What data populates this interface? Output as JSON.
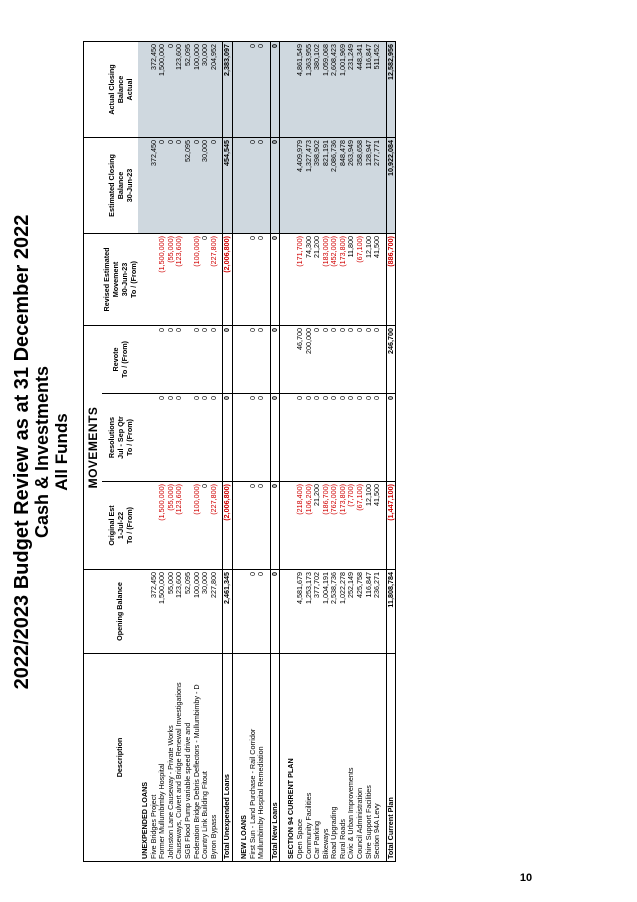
{
  "page_number": "10",
  "title": {
    "line1": "2022/2023 Budget Review as at 31 December 2022",
    "line2": "Cash & Investments",
    "line3": "All Funds"
  },
  "headers": {
    "movements": "MOVEMENTS",
    "description": "Description",
    "opening_balance": "Opening Balance",
    "original_est": [
      "Original Est",
      "1-Jul-22",
      "To / (From)"
    ],
    "resolutions": [
      "Resolutions",
      "Jul - Sep Qtr",
      "To / (From)"
    ],
    "revote": [
      "Revote",
      "To / (From)"
    ],
    "revised_estimated": [
      "Revised Estimated",
      "Movement",
      "30-Jun-23",
      "To / (From)"
    ],
    "estimated_closing": [
      "Estimated Closing",
      "Balance",
      "30-Jun-23"
    ],
    "actual_closing": [
      "Actual Closing",
      "Balance",
      "Actual"
    ]
  },
  "sections": [
    {
      "heading": "UNEXPENDED LOANS",
      "rows": [
        {
          "desc": "Five Bridges Project",
          "open": "372,450",
          "orig": "",
          "res": "",
          "rev": "",
          "revised": "",
          "est": "372,450",
          "act": "372,450"
        },
        {
          "desc": "Former Mullumbimby Hospital",
          "open": "1,500,000",
          "orig": "(1,500,000)",
          "res": "0",
          "rev": "0",
          "revised": "(1,500,000)",
          "est": "0",
          "act": "1,500,000"
        },
        {
          "desc": "Johnston Lane Causeway - Private Works",
          "open": "55,000",
          "orig": "(55,000)",
          "res": "0",
          "rev": "0",
          "revised": "(55,000)",
          "est": "0",
          "act": "0"
        },
        {
          "desc": "Causeways, Culvert and Bridge Renewal Investigations",
          "open": "123,600",
          "orig": "(123,600)",
          "res": "0",
          "rev": "0",
          "revised": "(123,600)",
          "est": "0",
          "act": "123,600"
        },
        {
          "desc": "SGB Flood Pump variable speed drive and",
          "open": "52,095",
          "orig": "",
          "res": "",
          "rev": "",
          "revised": "",
          "est": "52,095",
          "act": "52,095"
        },
        {
          "desc": "Federation Bridge Debris Deflectors - Mullumbimby - D",
          "open": "100,000",
          "orig": "(100,000)",
          "res": "0",
          "rev": "0",
          "revised": "(100,000)",
          "est": "0",
          "act": "100,000"
        },
        {
          "desc": "Country Link Building Fitout",
          "open": "30,000",
          "orig": "0",
          "res": "0",
          "rev": "0",
          "revised": "0",
          "est": "30,000",
          "act": "30,000"
        },
        {
          "desc": "Byron Bypass",
          "open": "227,800",
          "orig": "(227,800)",
          "res": "0",
          "rev": "0",
          "revised": "(227,800)",
          "est": "0",
          "act": "204,952"
        }
      ],
      "total": {
        "desc": "Total Unexpended Loans",
        "open": "2,461,345",
        "orig": "(2,006,800)",
        "res": "0",
        "rev": "0",
        "revised": "(2,006,800)",
        "est": "454,545",
        "act": "2,383,097"
      }
    },
    {
      "heading": "NEW LOANS",
      "rows": [
        {
          "desc": "First Sun - Land Purchase - Rail Corridor",
          "open": "0",
          "orig": "0",
          "res": "0",
          "rev": "0",
          "revised": "0",
          "est": "0",
          "act": "0"
        },
        {
          "desc": "Mullumbimby Hospital Remediation",
          "open": "0",
          "orig": "0",
          "res": "0",
          "rev": "0",
          "revised": "0",
          "est": "0",
          "act": "0"
        }
      ],
      "total": {
        "desc": "Total New Loans",
        "open": "0",
        "orig": "0",
        "res": "0",
        "rev": "0",
        "revised": "0",
        "est": "0",
        "act": "0"
      }
    },
    {
      "heading": "SECTION 94 CURRENT PLAN",
      "rows": [
        {
          "desc": "Open Space",
          "open": "4,581,679",
          "orig": "(218,400)",
          "res": "0",
          "rev": "46,700",
          "revised": "(171,700)",
          "est": "4,409,979",
          "act": "4,861,549"
        },
        {
          "desc": "Community Facilities",
          "open": "1,253,173",
          "orig": "(106,200)",
          "res": "0",
          "rev": "200,000",
          "revised": "74,300",
          "est": "1,327,473",
          "act": "1,363,955"
        },
        {
          "desc": "Car Parking",
          "open": "377,702",
          "orig": "21,200",
          "res": "0",
          "rev": "0",
          "revised": "21,200",
          "est": "398,902",
          "act": "380,102"
        },
        {
          "desc": "Bikeways",
          "open": "1,004,191",
          "orig": "(186,700)",
          "res": "0",
          "rev": "0",
          "revised": "(183,000)",
          "est": "821,191",
          "act": "1,059,068"
        },
        {
          "desc": "Road Upgrading",
          "open": "2,538,736",
          "orig": "(762,000)",
          "res": "0",
          "rev": "0",
          "revised": "(452,000)",
          "est": "2,086,736",
          "act": "2,608,423"
        },
        {
          "desc": "Rural Roads",
          "open": "1,022,278",
          "orig": "(173,800)",
          "res": "0",
          "rev": "0",
          "revised": "(173,800)",
          "est": "848,478",
          "act": "1,001,969"
        },
        {
          "desc": "Civic & Urban Improvements",
          "open": "252,149",
          "orig": "(7,700)",
          "res": "0",
          "rev": "0",
          "revised": "11,800",
          "est": "263,949",
          "act": "231,249"
        },
        {
          "desc": "Council Administration",
          "open": "425,758",
          "orig": "(67,100)",
          "res": "0",
          "rev": "0",
          "revised": "(67,100)",
          "est": "358,658",
          "act": "448,341"
        },
        {
          "desc": "Shire Support Facilities",
          "open": "116,847",
          "orig": "12,100",
          "res": "0",
          "rev": "0",
          "revised": "12,100",
          "est": "128,947",
          "act": "116,847"
        },
        {
          "desc": "Section 94A Levy",
          "open": "236,271",
          "orig": "41,500",
          "res": "0",
          "rev": "0",
          "revised": "41,500",
          "est": "277,771",
          "act": "511,452"
        }
      ],
      "total": {
        "desc": "Total Current Plan",
        "open": "11,808,784",
        "orig": "(1,447,100)",
        "res": "0",
        "rev": "246,700",
        "revised": "(886,700)",
        "est": "10,922,084",
        "act": "12,582,956"
      }
    }
  ]
}
